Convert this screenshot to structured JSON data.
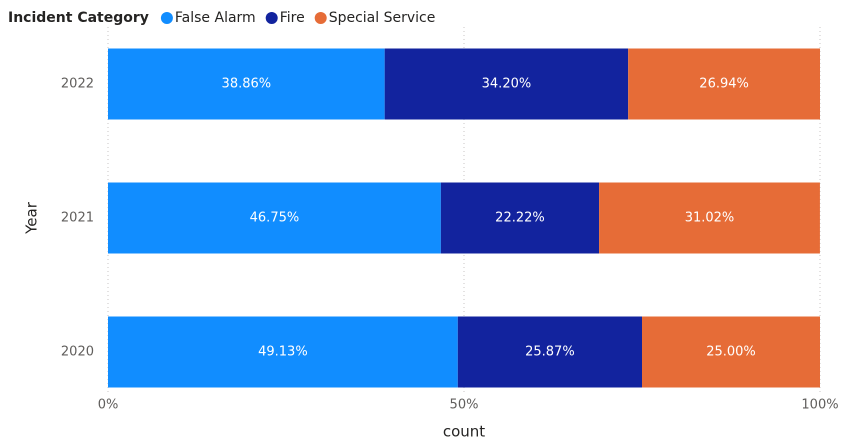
{
  "chart_data": {
    "type": "bar",
    "orientation": "horizontal",
    "stacked": true,
    "legend_title": "Incident Category",
    "legend_position": "top-left",
    "categories": [
      "2022",
      "2021",
      "2020"
    ],
    "series": [
      {
        "name": "False Alarm",
        "color": "#118dff",
        "values": [
          38.86,
          46.75,
          49.13
        ],
        "value_labels": [
          "38.86%",
          "46.75%",
          "49.13%"
        ]
      },
      {
        "name": "Fire",
        "color": "#12239e",
        "values": [
          34.2,
          22.22,
          25.87
        ],
        "value_labels": [
          "34.20%",
          "22.22%",
          "25.87%"
        ]
      },
      {
        "name": "Special Service",
        "color": "#e66c37",
        "values": [
          26.94,
          31.02,
          25.0
        ],
        "value_labels": [
          "26.94%",
          "31.02%",
          "25.00%"
        ]
      }
    ],
    "xlim": [
      0,
      100
    ],
    "xticks": [
      {
        "value": 0,
        "label": "0%"
      },
      {
        "value": 50,
        "label": "50%"
      },
      {
        "value": 100,
        "label": "100%"
      }
    ],
    "x_label": "count",
    "y_label": "Year",
    "grid": true
  }
}
